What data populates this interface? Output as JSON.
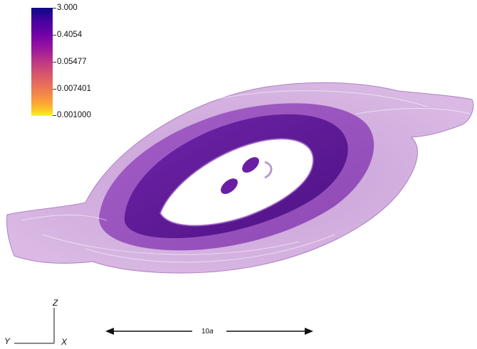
{
  "colorbar": {
    "labels": [
      "3.000",
      "0.4054",
      "0.05477",
      "0.007401",
      "0.001000"
    ],
    "colors": [
      "#0d0887",
      "#7201a8",
      "#bd3786",
      "#ed7953",
      "#f0f921"
    ]
  },
  "triad": {
    "z_label": "Z",
    "y_label": "Y",
    "x_label": "X"
  },
  "scale_bar": {
    "value": "10",
    "unit": "a"
  },
  "colors": {
    "outer_shell": "#c89ad8",
    "middle_shell": "#8a3eb0",
    "inner_shell": "#5e1596",
    "blob": "#6a1fa3"
  }
}
